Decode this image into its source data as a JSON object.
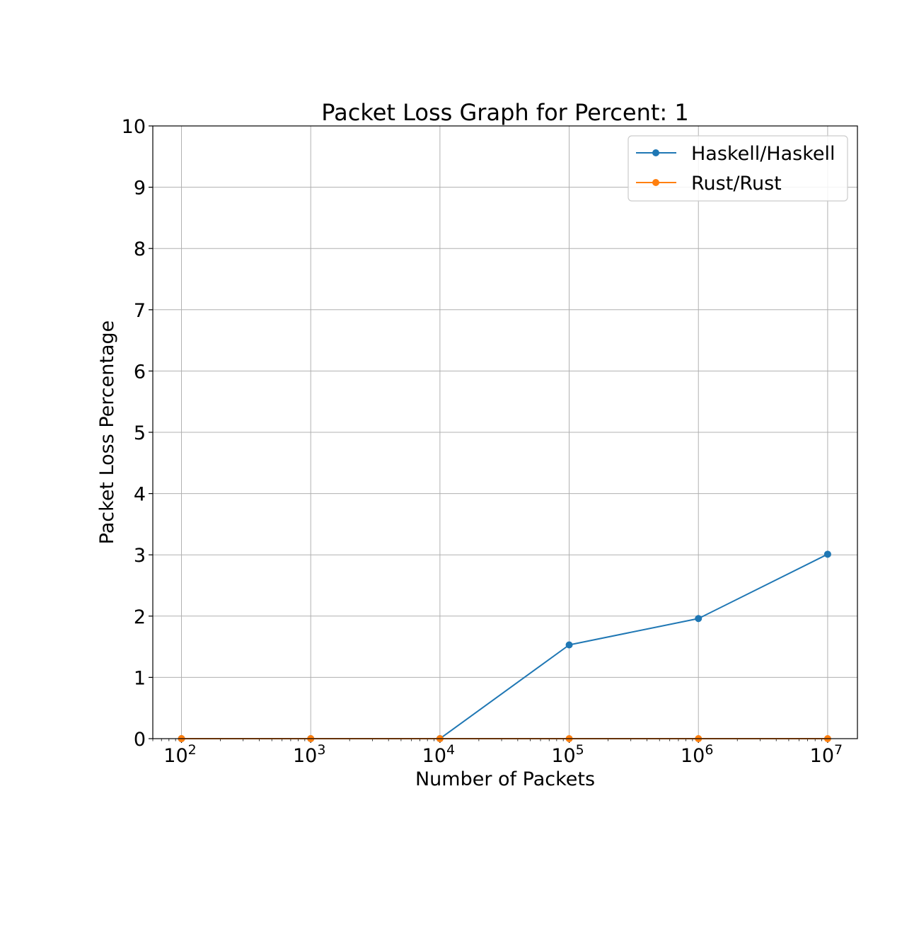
{
  "chart_data": {
    "type": "line",
    "title": "Packet Loss Graph for Percent: 1",
    "xlabel": "Number of Packets",
    "ylabel": "Packet Loss Percentage",
    "xscale": "log",
    "x": [
      100,
      1000,
      10000,
      100000,
      1000000,
      10000000
    ],
    "xlim": [
      60,
      17000000
    ],
    "ylim": [
      0,
      10
    ],
    "x_ticks": [
      {
        "value": 100,
        "base": "10",
        "exp": "2"
      },
      {
        "value": 1000,
        "base": "10",
        "exp": "3"
      },
      {
        "value": 10000,
        "base": "10",
        "exp": "4"
      },
      {
        "value": 100000,
        "base": "10",
        "exp": "5"
      },
      {
        "value": 1000000,
        "base": "10",
        "exp": "6"
      },
      {
        "value": 10000000,
        "base": "10",
        "exp": "7"
      }
    ],
    "y_ticks": [
      "0",
      "1",
      "2",
      "3",
      "4",
      "5",
      "6",
      "7",
      "8",
      "9",
      "10"
    ],
    "grid": true,
    "legend_position": "top-right",
    "series": [
      {
        "name": "Haskell/Haskell",
        "color": "#1f77b4",
        "values": [
          0,
          0,
          0,
          1.53,
          1.96,
          3.01
        ]
      },
      {
        "name": "Rust/Rust",
        "color": "#ff7f0e",
        "values": [
          0,
          0,
          0,
          0,
          0,
          0
        ]
      }
    ]
  }
}
